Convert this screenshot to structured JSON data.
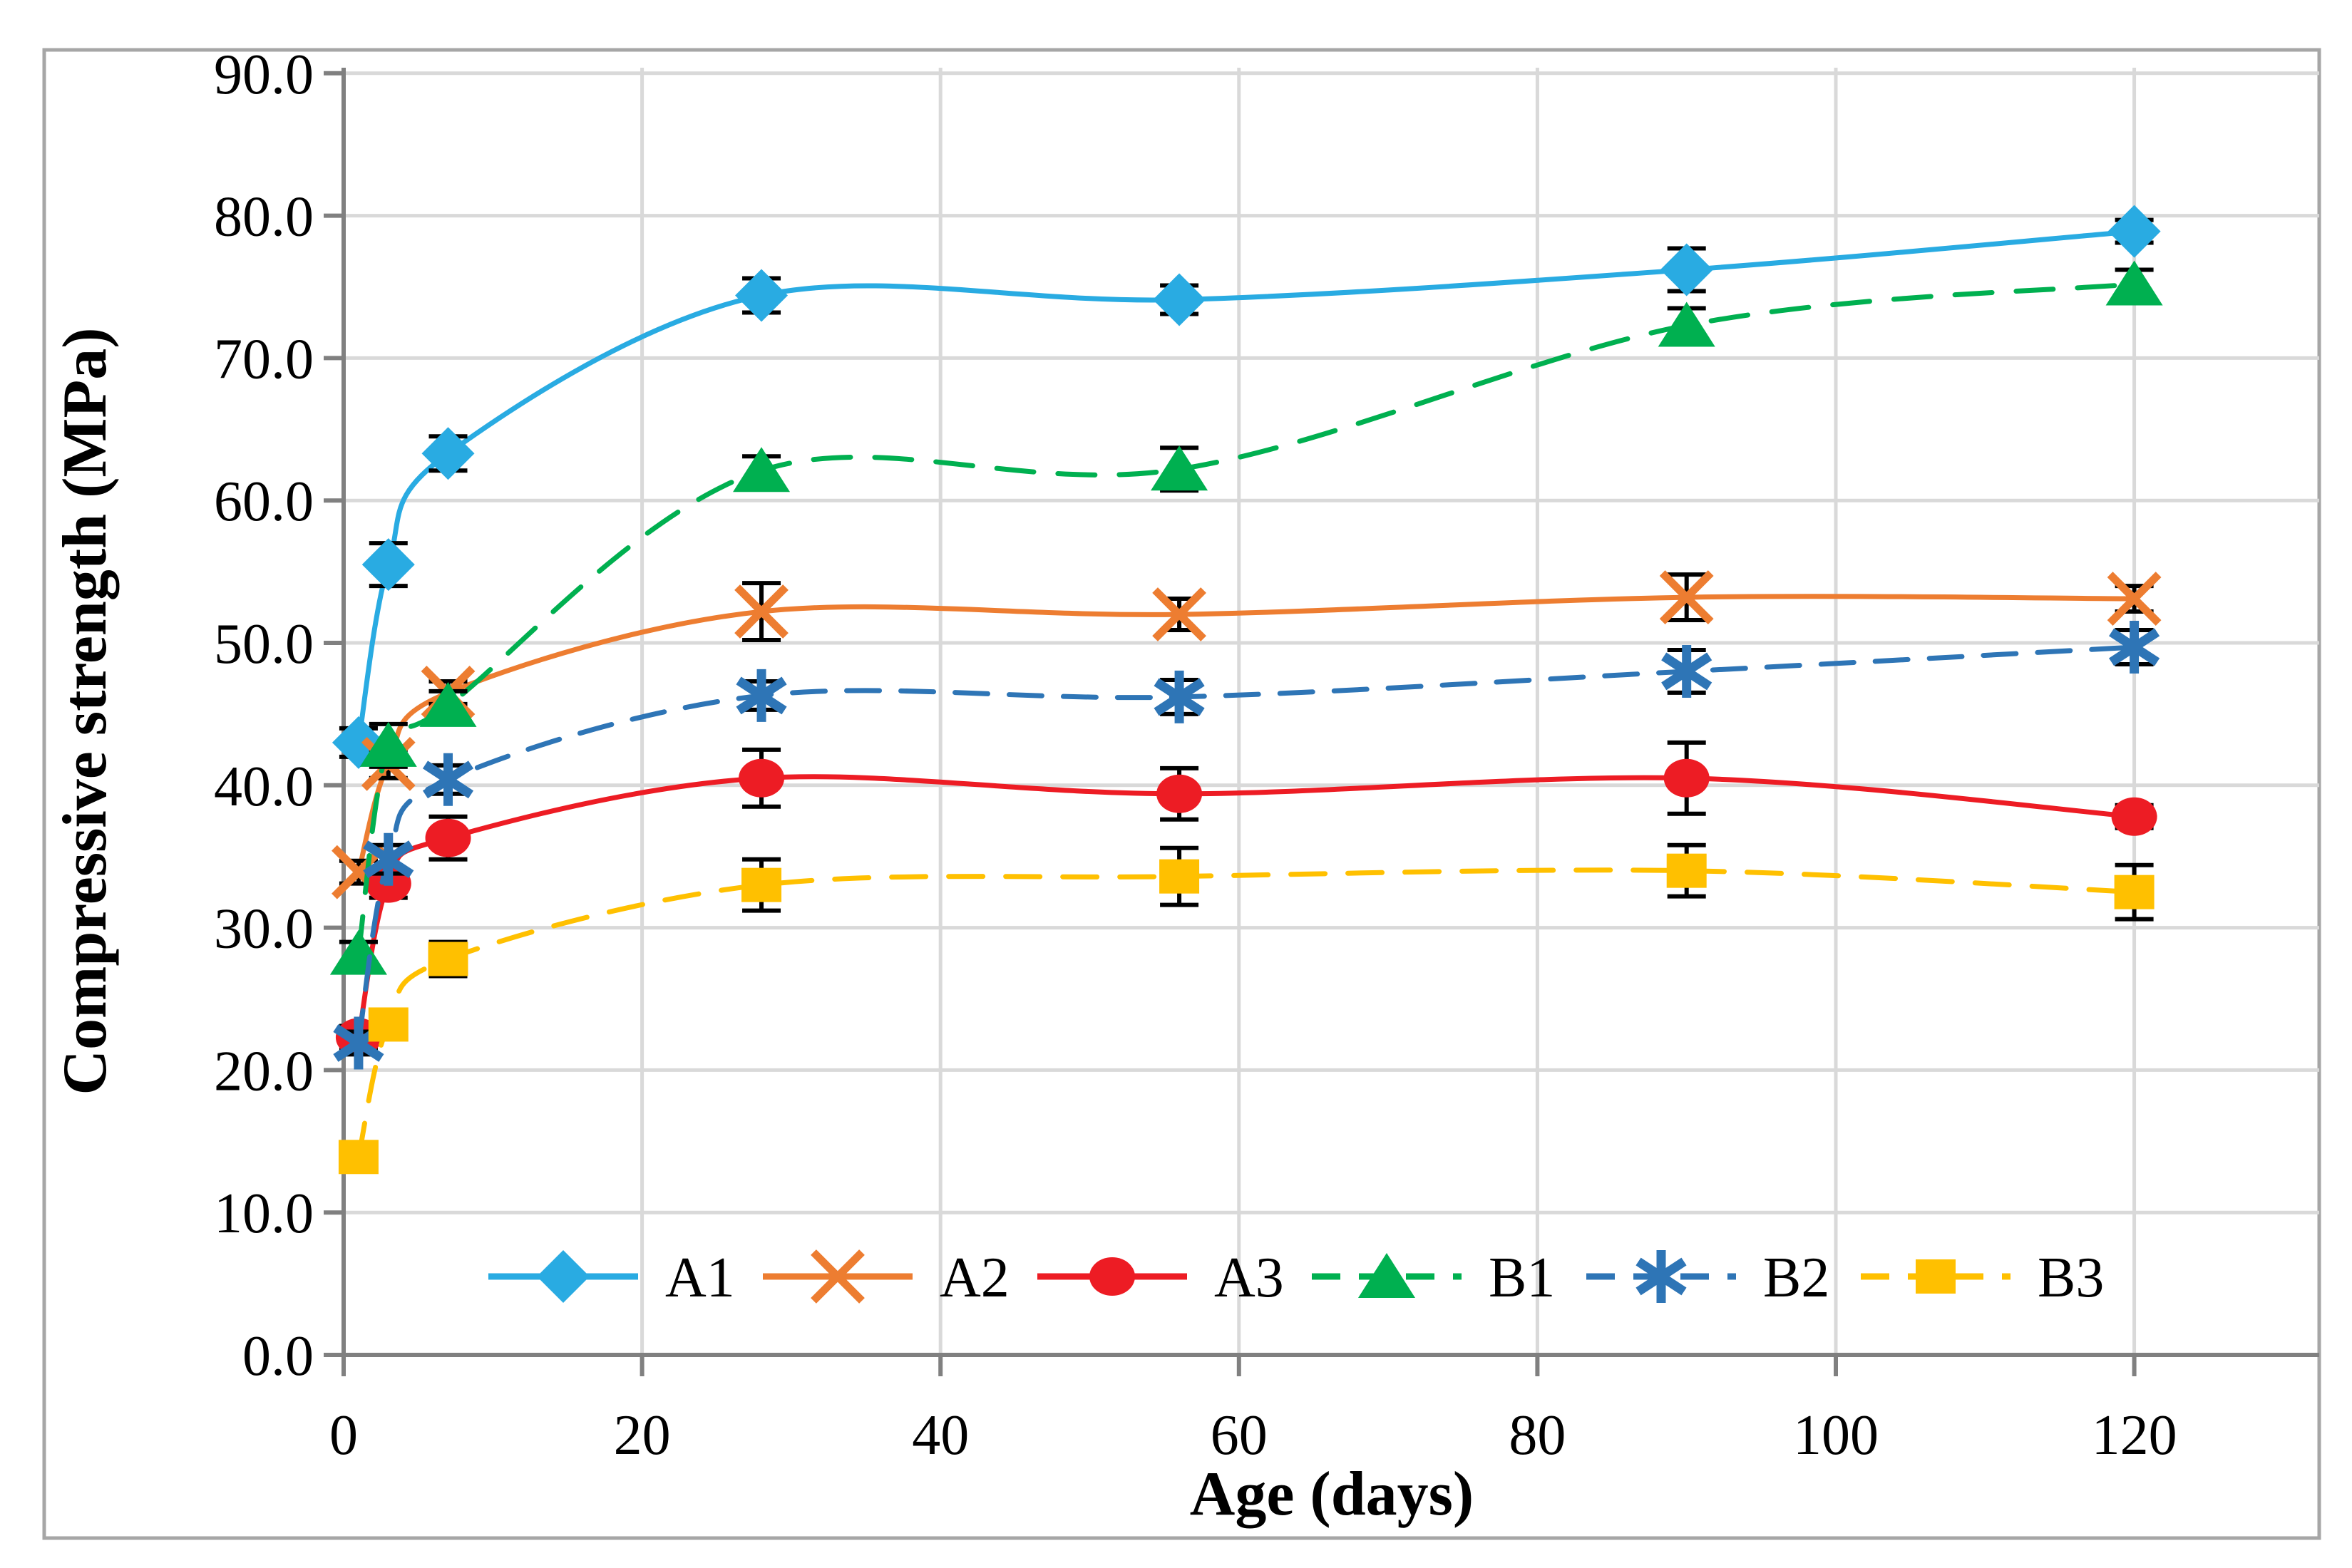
{
  "figure": {
    "x_label": "Age (days)",
    "y_label": "Compressive strength (MPa)"
  },
  "chart_data": {
    "type": "line",
    "title": "",
    "xlabel": "Age (days)",
    "ylabel": "Compressive strength (MPa)",
    "x": [
      1,
      3,
      7,
      28,
      56,
      90,
      120
    ],
    "x_ticks": [
      0,
      20,
      40,
      60,
      80,
      100,
      120
    ],
    "x_tick_labels": [
      "0",
      "20",
      "40",
      "60",
      "80",
      "100",
      "120"
    ],
    "y_ticks": [
      0,
      10,
      20,
      30,
      40,
      50,
      60,
      70,
      80,
      90
    ],
    "y_tick_labels": [
      "0.0",
      "10.0",
      "20.0",
      "30.0",
      "40.0",
      "50.0",
      "60.0",
      "70.0",
      "80.0",
      "90.0"
    ],
    "xlim": [
      0,
      132
    ],
    "ylim": [
      0,
      90.4
    ],
    "grid": true,
    "legend_position": "bottom-inside",
    "error_bar_color": "#000000",
    "series": [
      {
        "name": "A1",
        "color": "#29ABE2",
        "line": "solid",
        "marker": "diamond",
        "values": [
          43.0,
          55.5,
          63.3,
          74.4,
          74.1,
          76.2,
          78.9
        ],
        "errors": [
          1.0,
          1.5,
          1.2,
          1.2,
          1.0,
          1.5,
          0.8
        ]
      },
      {
        "name": "A2",
        "color": "#ED7D31",
        "line": "solid",
        "marker": "x",
        "values": [
          33.9,
          41.5,
          46.5,
          52.2,
          52.0,
          53.2,
          53.1
        ],
        "errors": [
          0.8,
          1.0,
          0.8,
          2.0,
          1.1,
          1.6,
          0.9
        ]
      },
      {
        "name": "A3",
        "color": "#ED1C24",
        "line": "solid",
        "marker": "circle",
        "values": [
          22.3,
          33.1,
          36.3,
          40.5,
          39.4,
          40.5,
          37.8
        ],
        "errors": [
          0.8,
          1.0,
          1.5,
          2.0,
          1.8,
          2.5,
          0.8
        ]
      },
      {
        "name": "B1",
        "color": "#00B050",
        "line": "dashed",
        "marker": "triangle",
        "values": [
          28.2,
          42.8,
          45.6,
          62.1,
          62.2,
          72.3,
          75.2
        ],
        "errors": [
          0.8,
          1.5,
          1.0,
          1.0,
          1.5,
          1.2,
          1.0
        ]
      },
      {
        "name": "B2",
        "color": "#2E75B6",
        "line": "dashed",
        "marker": "asterisk",
        "values": [
          21.9,
          34.8,
          40.4,
          46.3,
          46.2,
          48.0,
          49.7
        ],
        "errors": [
          0.8,
          1.0,
          1.0,
          1.0,
          1.2,
          1.5,
          1.2
        ]
      },
      {
        "name": "B3",
        "color": "#FFC000",
        "line": "dashed",
        "marker": "square",
        "values": [
          13.9,
          23.2,
          27.8,
          33.0,
          33.6,
          34.0,
          32.5
        ],
        "errors": [
          0.5,
          1.0,
          1.2,
          1.8,
          2.0,
          1.8,
          1.9
        ]
      }
    ]
  },
  "style": {
    "grid_color": "#D9D9D9",
    "axis_color": "#808080",
    "border_color": "#A6A6A6",
    "text_color": "#000000",
    "background": "#FFFFFF"
  }
}
